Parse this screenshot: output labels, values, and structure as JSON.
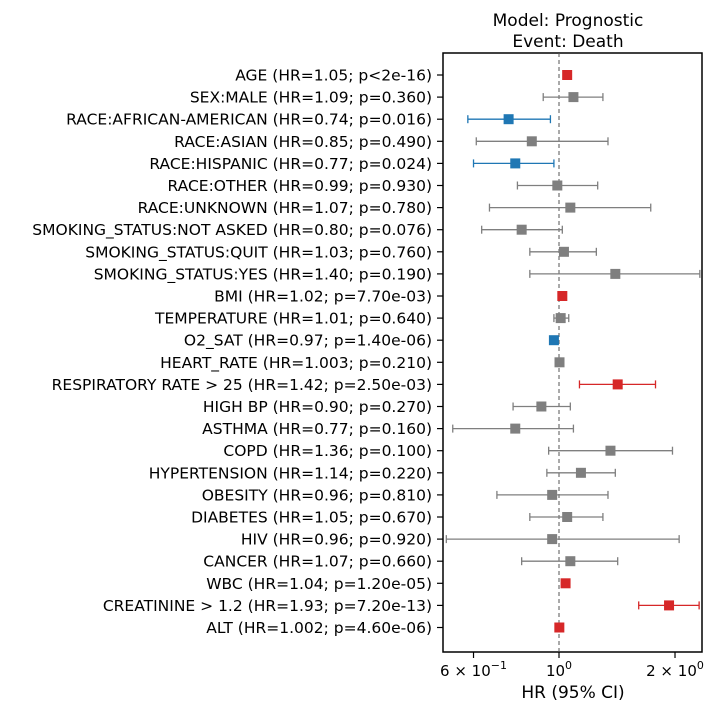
{
  "chart_data": {
    "type": "scatter",
    "subtype": "forest-plot",
    "title_lines": [
      "Model: Prognostic",
      "Event: Death"
    ],
    "xlabel": "HR (95% CI)",
    "xscale": "log",
    "xlim": [
      0.5,
      2.35
    ],
    "xticks": [
      {
        "value": 0.6,
        "base": "6 × 10",
        "exp": "−1"
      },
      {
        "value": 1.0,
        "base": "10",
        "exp": "0"
      },
      {
        "value": 2.0,
        "base": "2 × 10",
        "exp": "0"
      }
    ],
    "reference_line": 1.0,
    "colors": {
      "significant_high": "#d62728",
      "significant_low": "#1f77b4",
      "not_significant": "#7f7f7f",
      "reference": "#555555"
    },
    "rows": [
      {
        "label": "AGE (HR=1.05; p<2e-16)",
        "hr": 1.05,
        "lo": 1.04,
        "hi": 1.06,
        "sig": "high"
      },
      {
        "label": "SEX:MALE (HR=1.09; p=0.360)",
        "hr": 1.09,
        "lo": 0.91,
        "hi": 1.3,
        "sig": "none"
      },
      {
        "label": "RACE:AFRICAN-AMERICAN (HR=0.74; p=0.016)",
        "hr": 0.74,
        "lo": 0.58,
        "hi": 0.95,
        "sig": "low"
      },
      {
        "label": "RACE:ASIAN (HR=0.85; p=0.490)",
        "hr": 0.85,
        "lo": 0.61,
        "hi": 1.34,
        "sig": "none"
      },
      {
        "label": "RACE:HISPANIC (HR=0.77; p=0.024)",
        "hr": 0.77,
        "lo": 0.6,
        "hi": 0.97,
        "sig": "low"
      },
      {
        "label": "RACE:OTHER (HR=0.99; p=0.930)",
        "hr": 0.99,
        "lo": 0.78,
        "hi": 1.26,
        "sig": "none"
      },
      {
        "label": "RACE:UNKNOWN (HR=1.07; p=0.780)",
        "hr": 1.07,
        "lo": 0.66,
        "hi": 1.73,
        "sig": "none"
      },
      {
        "label": "SMOKING_STATUS:NOT ASKED (HR=0.80; p=0.076)",
        "hr": 0.8,
        "lo": 0.63,
        "hi": 1.02,
        "sig": "none"
      },
      {
        "label": "SMOKING_STATUS:QUIT (HR=1.03; p=0.760)",
        "hr": 1.03,
        "lo": 0.84,
        "hi": 1.25,
        "sig": "none"
      },
      {
        "label": "SMOKING_STATUS:YES (HR=1.40; p=0.190)",
        "hr": 1.4,
        "lo": 0.84,
        "hi": 2.32,
        "sig": "none"
      },
      {
        "label": "BMI (HR=1.02; p=7.70e-03)",
        "hr": 1.02,
        "lo": 1.005,
        "hi": 1.035,
        "sig": "high"
      },
      {
        "label": "TEMPERATURE (HR=1.01; p=0.640)",
        "hr": 1.01,
        "lo": 0.97,
        "hi": 1.06,
        "sig": "none"
      },
      {
        "label": "O2_SAT (HR=0.97; p=1.40e-06)",
        "hr": 0.97,
        "lo": 0.96,
        "hi": 0.98,
        "sig": "low"
      },
      {
        "label": "HEART_RATE (HR=1.003; p=0.210)",
        "hr": 1.003,
        "lo": 0.998,
        "hi": 1.008,
        "sig": "none"
      },
      {
        "label": "RESPIRATORY RATE > 25 (HR=1.42; p=2.50e-03)",
        "hr": 1.42,
        "lo": 1.13,
        "hi": 1.78,
        "sig": "high"
      },
      {
        "label": "HIGH BP (HR=0.90; p=0.270)",
        "hr": 0.9,
        "lo": 0.76,
        "hi": 1.07,
        "sig": "none"
      },
      {
        "label": "ASTHMA (HR=0.77; p=0.160)",
        "hr": 0.77,
        "lo": 0.53,
        "hi": 1.09,
        "sig": "none"
      },
      {
        "label": "COPD (HR=1.36; p=0.100)",
        "hr": 1.36,
        "lo": 0.94,
        "hi": 1.97,
        "sig": "none"
      },
      {
        "label": "HYPERTENSION (HR=1.14; p=0.220)",
        "hr": 1.14,
        "lo": 0.93,
        "hi": 1.4,
        "sig": "none"
      },
      {
        "label": "OBESITY (HR=0.96; p=0.810)",
        "hr": 0.96,
        "lo": 0.69,
        "hi": 1.34,
        "sig": "none"
      },
      {
        "label": "DIABETES (HR=1.05; p=0.670)",
        "hr": 1.05,
        "lo": 0.84,
        "hi": 1.3,
        "sig": "none"
      },
      {
        "label": "HIV (HR=0.96; p=0.920)",
        "hr": 0.96,
        "lo": 0.51,
        "hi": 2.05,
        "sig": "none"
      },
      {
        "label": "CANCER (HR=1.07; p=0.660)",
        "hr": 1.07,
        "lo": 0.8,
        "hi": 1.42,
        "sig": "none"
      },
      {
        "label": "WBC (HR=1.04; p=1.20e-05)",
        "hr": 1.04,
        "lo": 1.02,
        "hi": 1.06,
        "sig": "high"
      },
      {
        "label": "CREATININE > 1.2 (HR=1.93; p=7.20e-13)",
        "hr": 1.93,
        "lo": 1.61,
        "hi": 2.31,
        "sig": "high"
      },
      {
        "label": "ALT (HR=1.002; p=4.60e-06)",
        "hr": 1.002,
        "lo": 1.001,
        "hi": 1.003,
        "sig": "high"
      }
    ]
  }
}
